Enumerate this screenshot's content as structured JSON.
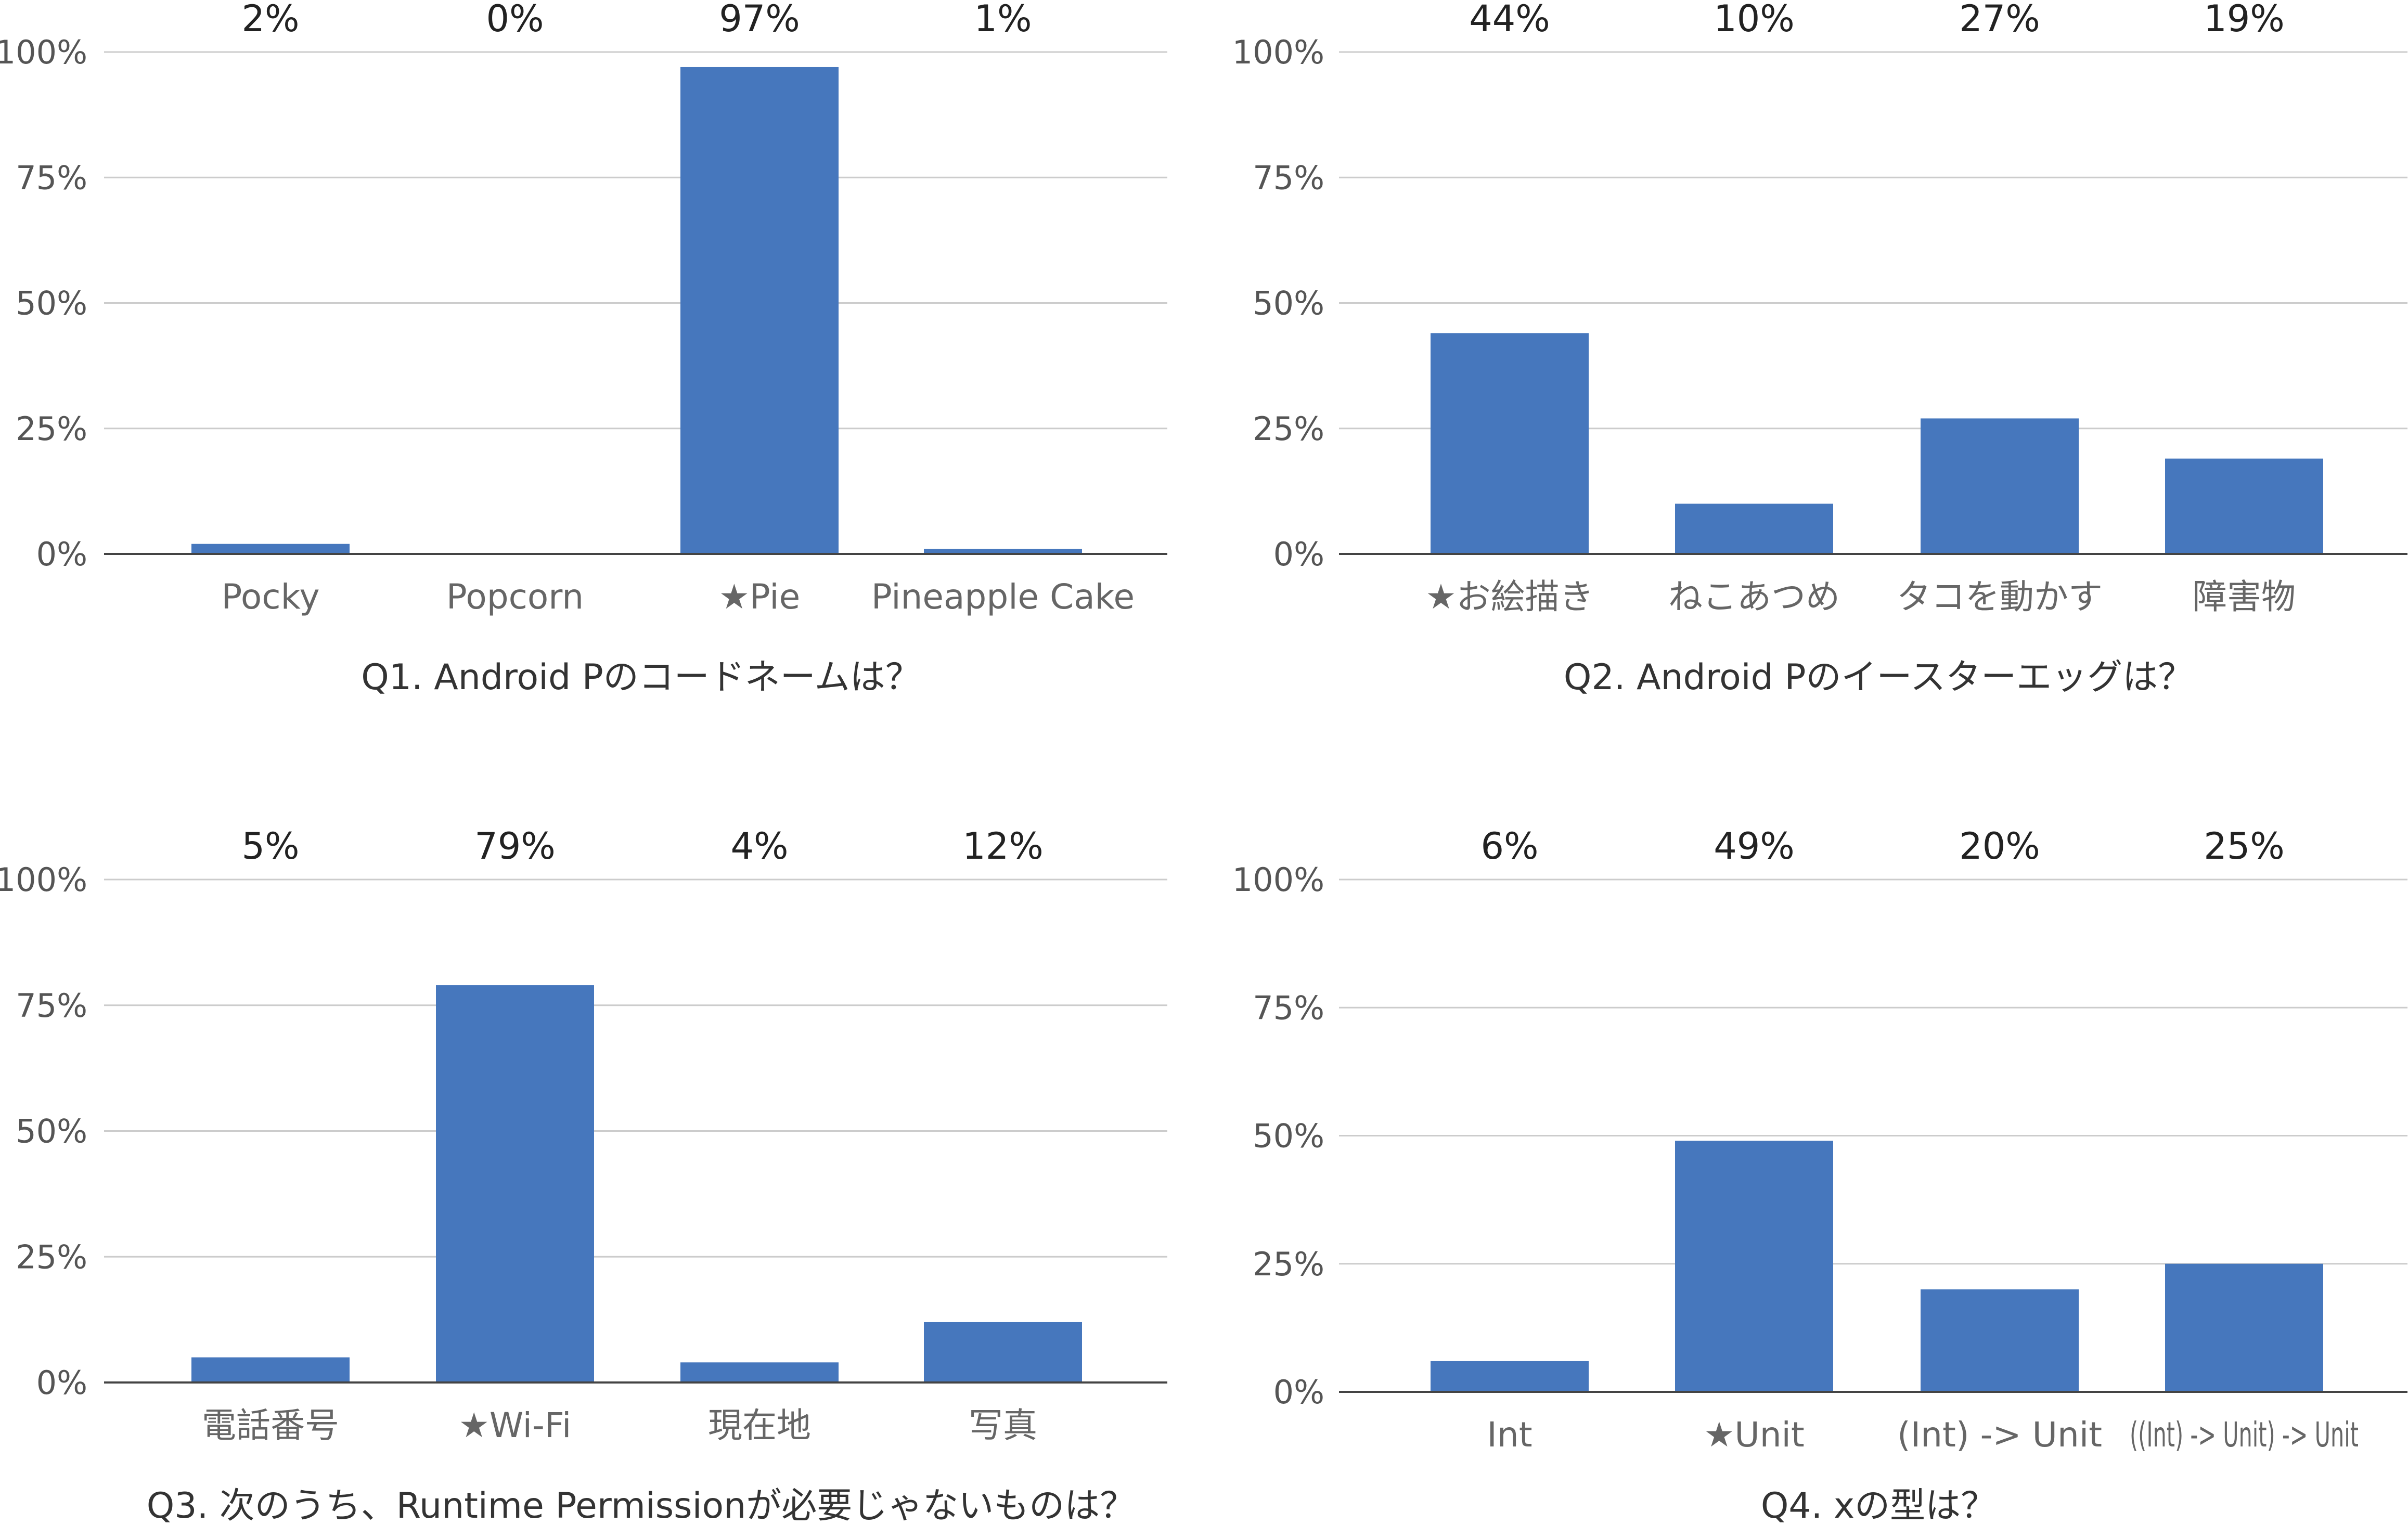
{
  "chart_data": [
    {
      "type": "bar",
      "title": "Q1. Android Pのコードネームは？",
      "categories": [
        "Pocky",
        "Popcorn",
        "★Pie",
        "Pineapple Cake"
      ],
      "values": [
        2,
        0,
        97,
        1
      ],
      "data_labels": [
        "2%",
        "0%",
        "97%",
        "1%"
      ],
      "yticks": [
        "0%",
        "25%",
        "50%",
        "75%",
        "100%"
      ],
      "ylim": [
        0,
        100
      ],
      "grid": true,
      "color": "#4677bd"
    },
    {
      "type": "bar",
      "title": "Q2. Android Pのイースターエッグは？",
      "categories": [
        "★お絵描き",
        "ねこあつめ",
        "タコを動かす",
        "障害物"
      ],
      "values": [
        44,
        10,
        27,
        19
      ],
      "data_labels": [
        "44%",
        "10%",
        "27%",
        "19%"
      ],
      "yticks": [
        "0%",
        "25%",
        "50%",
        "75%",
        "100%"
      ],
      "ylim": [
        0,
        100
      ],
      "grid": true,
      "color": "#4677bd"
    },
    {
      "type": "bar",
      "title": "Q3. 次のうち、Runtime Permissionが必要じゃないものは？",
      "categories": [
        "電話番号",
        "★Wi-Fi",
        "現在地",
        "写真"
      ],
      "values": [
        5,
        79,
        4,
        12
      ],
      "data_labels": [
        "5%",
        "79%",
        "4%",
        "12%"
      ],
      "yticks": [
        "0%",
        "25%",
        "50%",
        "75%",
        "100%"
      ],
      "ylim": [
        0,
        100
      ],
      "grid": true,
      "color": "#4677bd"
    },
    {
      "type": "bar",
      "title": "Q4. xの型は？",
      "categories": [
        "Int",
        "★Unit",
        "(Int) -> Unit",
        "((Int) -> Unit) -> Unit"
      ],
      "values": [
        6,
        49,
        20,
        25
      ],
      "data_labels": [
        "6%",
        "49%",
        "20%",
        "25%"
      ],
      "yticks": [
        "0%",
        "25%",
        "50%",
        "75%",
        "100%"
      ],
      "ylim": [
        0,
        100
      ],
      "grid": true,
      "color": "#4677bd"
    }
  ]
}
